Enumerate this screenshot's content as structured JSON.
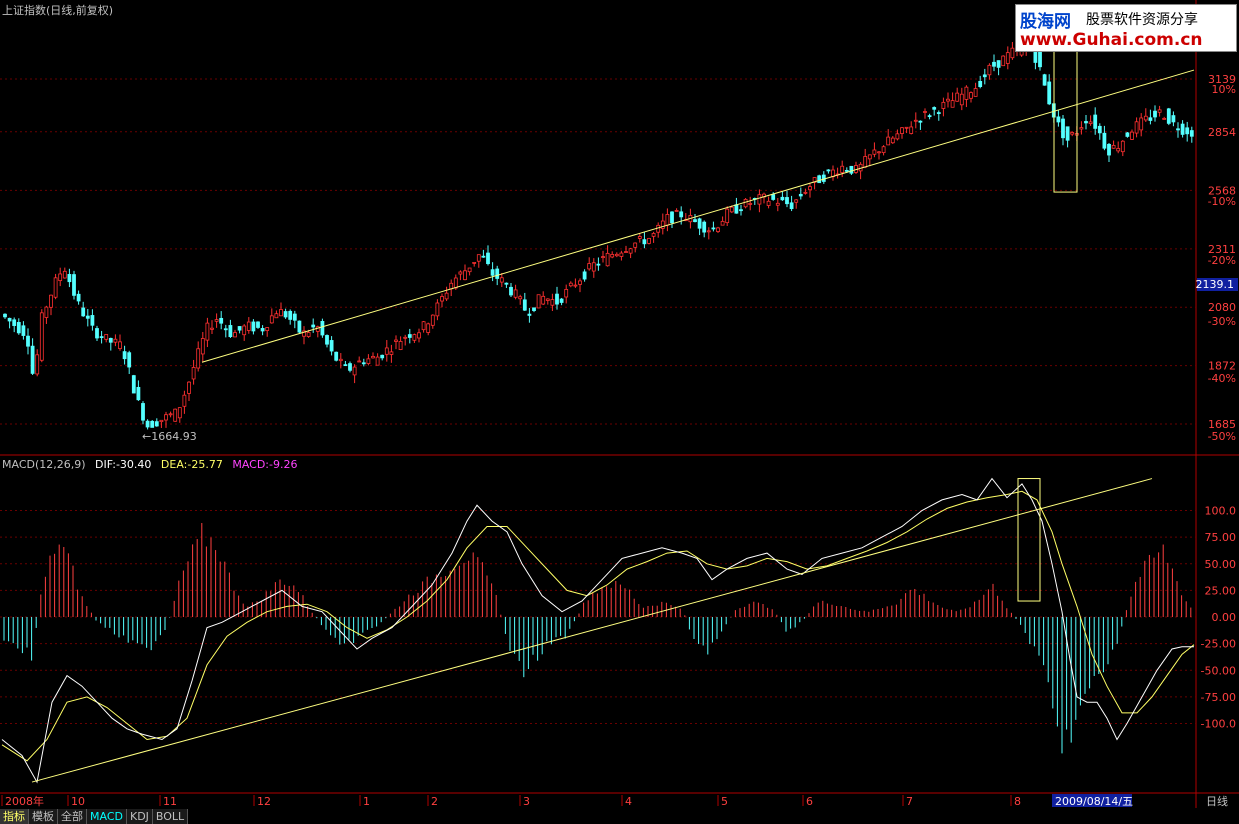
{
  "chart_data": [
    {
      "type": "candlestick",
      "title": "上证指数(日线,前复权)",
      "price_ticks": [
        3139,
        2854,
        2568,
        2311,
        2080,
        1872,
        1685
      ],
      "pct_ticks": [
        "10%",
        "-10%",
        "-20%",
        "-30%",
        "-40%",
        "-50%"
      ],
      "current_price": "2139.1",
      "low_annotation": "1664.93",
      "x_labels": [
        "2008年",
        "10",
        "11",
        "12",
        "1",
        "2",
        "3",
        "4",
        "5",
        "6",
        "7",
        "8"
      ],
      "date_label": "2009/08/14/五",
      "period_label": "日线",
      "close_path": [
        [
          0,
          2050
        ],
        [
          25,
          1980
        ],
        [
          32,
          1815
        ],
        [
          40,
          2045
        ],
        [
          55,
          2190
        ],
        [
          62,
          2240
        ],
        [
          75,
          2100
        ],
        [
          90,
          2000
        ],
        [
          105,
          1960
        ],
        [
          120,
          1940
        ],
        [
          135,
          1760
        ],
        [
          145,
          1680
        ],
        [
          160,
          1700
        ],
        [
          175,
          1720
        ],
        [
          185,
          1800
        ],
        [
          195,
          1900
        ],
        [
          205,
          2000
        ],
        [
          215,
          2040
        ],
        [
          230,
          1980
        ],
        [
          245,
          2010
        ],
        [
          260,
          2000
        ],
        [
          275,
          2070
        ],
        [
          285,
          2050
        ],
        [
          300,
          1980
        ],
        [
          315,
          2010
        ],
        [
          330,
          1910
        ],
        [
          345,
          1855
        ],
        [
          360,
          1890
        ],
        [
          375,
          1900
        ],
        [
          390,
          1940
        ],
        [
          405,
          1980
        ],
        [
          420,
          2000
        ],
        [
          435,
          2080
        ],
        [
          450,
          2180
        ],
        [
          465,
          2230
        ],
        [
          478,
          2290
        ],
        [
          490,
          2210
        ],
        [
          500,
          2180
        ],
        [
          515,
          2120
        ],
        [
          525,
          2060
        ],
        [
          540,
          2120
        ],
        [
          555,
          2100
        ],
        [
          570,
          2160
        ],
        [
          590,
          2240
        ],
        [
          610,
          2290
        ],
        [
          630,
          2330
        ],
        [
          650,
          2360
        ],
        [
          665,
          2440
        ],
        [
          680,
          2460
        ],
        [
          695,
          2420
        ],
        [
          710,
          2390
        ],
        [
          725,
          2460
        ],
        [
          740,
          2500
        ],
        [
          760,
          2530
        ],
        [
          775,
          2520
        ],
        [
          790,
          2500
        ],
        [
          805,
          2580
        ],
        [
          820,
          2630
        ],
        [
          840,
          2680
        ],
        [
          855,
          2660
        ],
        [
          870,
          2740
        ],
        [
          885,
          2800
        ],
        [
          900,
          2850
        ],
        [
          915,
          2920
        ],
        [
          930,
          2960
        ],
        [
          945,
          3000
        ],
        [
          960,
          3050
        ],
        [
          975,
          3100
        ],
        [
          988,
          3200
        ],
        [
          1000,
          3250
        ],
        [
          1012,
          3300
        ],
        [
          1025,
          3350
        ],
        [
          1035,
          3250
        ],
        [
          1045,
          3050
        ],
        [
          1055,
          2900
        ],
        [
          1065,
          2810
        ],
        [
          1075,
          2860
        ],
        [
          1085,
          2930
        ],
        [
          1095,
          2880
        ],
        [
          1105,
          2760
        ],
        [
          1115,
          2780
        ],
        [
          1130,
          2870
        ],
        [
          1145,
          2920
        ],
        [
          1160,
          2960
        ],
        [
          1170,
          2900
        ],
        [
          1180,
          2870
        ],
        [
          1192,
          2850
        ]
      ],
      "trendline": {
        "from": [
          0,
          1620
        ],
        "to": [
          1192,
          3190
        ]
      },
      "highlight_box": {
        "from": [
          1052,
          3380
        ],
        "to": [
          1075,
          2560
        ]
      }
    },
    {
      "type": "macd",
      "title": "MACD(12,26,9)",
      "dif_label": "DIF:-30.40",
      "dea_label": "DEA:-25.77",
      "macd_label": "MACD:-9.26",
      "y_ticks": [
        "100.0",
        "75.00",
        "50.00",
        "25.00",
        "0.00",
        "-25.00",
        "-50.00",
        "-75.00",
        "-100.0"
      ],
      "ylim": [
        -160,
        130
      ],
      "dif_path": [
        [
          0,
          -115
        ],
        [
          20,
          -130
        ],
        [
          35,
          -155
        ],
        [
          50,
          -80
        ],
        [
          65,
          -55
        ],
        [
          80,
          -65
        ],
        [
          95,
          -80
        ],
        [
          110,
          -95
        ],
        [
          125,
          -105
        ],
        [
          140,
          -110
        ],
        [
          160,
          -115
        ],
        [
          175,
          -105
        ],
        [
          190,
          -60
        ],
        [
          205,
          -10
        ],
        [
          220,
          -5
        ],
        [
          240,
          5
        ],
        [
          260,
          15
        ],
        [
          280,
          25
        ],
        [
          300,
          10
        ],
        [
          320,
          5
        ],
        [
          340,
          -15
        ],
        [
          355,
          -30
        ],
        [
          370,
          -20
        ],
        [
          390,
          -10
        ],
        [
          410,
          10
        ],
        [
          430,
          30
        ],
        [
          450,
          60
        ],
        [
          465,
          90
        ],
        [
          475,
          105
        ],
        [
          490,
          90
        ],
        [
          505,
          80
        ],
        [
          520,
          50
        ],
        [
          540,
          20
        ],
        [
          560,
          5
        ],
        [
          580,
          15
        ],
        [
          600,
          35
        ],
        [
          620,
          55
        ],
        [
          640,
          60
        ],
        [
          660,
          65
        ],
        [
          680,
          60
        ],
        [
          695,
          55
        ],
        [
          710,
          35
        ],
        [
          725,
          45
        ],
        [
          745,
          55
        ],
        [
          765,
          60
        ],
        [
          785,
          45
        ],
        [
          800,
          40
        ],
        [
          820,
          55
        ],
        [
          840,
          60
        ],
        [
          860,
          65
        ],
        [
          880,
          75
        ],
        [
          900,
          85
        ],
        [
          920,
          100
        ],
        [
          940,
          110
        ],
        [
          960,
          115
        ],
        [
          975,
          110
        ],
        [
          990,
          130
        ],
        [
          1005,
          112
        ],
        [
          1020,
          125
        ],
        [
          1030,
          110
        ],
        [
          1040,
          90
        ],
        [
          1050,
          50
        ],
        [
          1060,
          5
        ],
        [
          1068,
          -40
        ],
        [
          1075,
          -75
        ],
        [
          1085,
          -80
        ],
        [
          1095,
          -80
        ],
        [
          1105,
          -95
        ],
        [
          1115,
          -115
        ],
        [
          1125,
          -100
        ],
        [
          1140,
          -75
        ],
        [
          1155,
          -50
        ],
        [
          1170,
          -30
        ],
        [
          1180,
          -28
        ],
        [
          1192,
          -28
        ]
      ],
      "dea_path": [
        [
          0,
          -120
        ],
        [
          25,
          -135
        ],
        [
          45,
          -115
        ],
        [
          65,
          -80
        ],
        [
          85,
          -75
        ],
        [
          105,
          -85
        ],
        [
          125,
          -100
        ],
        [
          145,
          -115
        ],
        [
          165,
          -112
        ],
        [
          185,
          -95
        ],
        [
          205,
          -45
        ],
        [
          225,
          -18
        ],
        [
          245,
          -5
        ],
        [
          265,
          5
        ],
        [
          285,
          10
        ],
        [
          305,
          12
        ],
        [
          325,
          5
        ],
        [
          345,
          -10
        ],
        [
          365,
          -20
        ],
        [
          385,
          -12
        ],
        [
          405,
          0
        ],
        [
          425,
          15
        ],
        [
          445,
          35
        ],
        [
          465,
          65
        ],
        [
          485,
          85
        ],
        [
          505,
          85
        ],
        [
          525,
          65
        ],
        [
          545,
          45
        ],
        [
          565,
          25
        ],
        [
          585,
          20
        ],
        [
          605,
          30
        ],
        [
          625,
          45
        ],
        [
          645,
          52
        ],
        [
          665,
          60
        ],
        [
          685,
          62
        ],
        [
          705,
          50
        ],
        [
          725,
          45
        ],
        [
          745,
          48
        ],
        [
          765,
          55
        ],
        [
          785,
          52
        ],
        [
          805,
          45
        ],
        [
          825,
          48
        ],
        [
          845,
          55
        ],
        [
          865,
          62
        ],
        [
          885,
          70
        ],
        [
          905,
          80
        ],
        [
          925,
          92
        ],
        [
          945,
          102
        ],
        [
          965,
          108
        ],
        [
          985,
          112
        ],
        [
          1005,
          115
        ],
        [
          1020,
          118
        ],
        [
          1035,
          110
        ],
        [
          1050,
          80
        ],
        [
          1060,
          50
        ],
        [
          1075,
          10
        ],
        [
          1090,
          -35
        ],
        [
          1105,
          -65
        ],
        [
          1120,
          -90
        ],
        [
          1135,
          -90
        ],
        [
          1150,
          -75
        ],
        [
          1165,
          -55
        ],
        [
          1180,
          -35
        ],
        [
          1192,
          -26
        ]
      ],
      "hist_path": [
        [
          0,
          -20
        ],
        [
          15,
          -30
        ],
        [
          30,
          -42
        ],
        [
          40,
          30
        ],
        [
          55,
          80
        ],
        [
          65,
          65
        ],
        [
          80,
          20
        ],
        [
          95,
          -5
        ],
        [
          110,
          -15
        ],
        [
          125,
          -25
        ],
        [
          145,
          -35
        ],
        [
          165,
          -10
        ],
        [
          180,
          45
        ],
        [
          200,
          85
        ],
        [
          215,
          75
        ],
        [
          230,
          35
        ],
        [
          245,
          10
        ],
        [
          260,
          20
        ],
        [
          280,
          40
        ],
        [
          295,
          30
        ],
        [
          310,
          5
        ],
        [
          325,
          -15
        ],
        [
          340,
          -35
        ],
        [
          355,
          -20
        ],
        [
          375,
          -10
        ],
        [
          390,
          5
        ],
        [
          410,
          25
        ],
        [
          430,
          40
        ],
        [
          450,
          55
        ],
        [
          465,
          65
        ],
        [
          480,
          50
        ],
        [
          495,
          20
        ],
        [
          505,
          -25
        ],
        [
          520,
          -60
        ],
        [
          535,
          -40
        ],
        [
          550,
          -25
        ],
        [
          565,
          -20
        ],
        [
          585,
          20
        ],
        [
          605,
          35
        ],
        [
          625,
          30
        ],
        [
          640,
          10
        ],
        [
          660,
          15
        ],
        [
          680,
          10
        ],
        [
          690,
          -20
        ],
        [
          705,
          -35
        ],
        [
          720,
          -15
        ],
        [
          735,
          10
        ],
        [
          750,
          15
        ],
        [
          770,
          10
        ],
        [
          785,
          -15
        ],
        [
          800,
          -5
        ],
        [
          815,
          15
        ],
        [
          830,
          15
        ],
        [
          845,
          10
        ],
        [
          865,
          5
        ],
        [
          880,
          10
        ],
        [
          895,
          15
        ],
        [
          910,
          30
        ],
        [
          925,
          20
        ],
        [
          940,
          10
        ],
        [
          955,
          5
        ],
        [
          975,
          15
        ],
        [
          990,
          35
        ],
        [
          1005,
          10
        ],
        [
          1020,
          -10
        ],
        [
          1035,
          -40
        ],
        [
          1050,
          -80
        ],
        [
          1062,
          -140
        ],
        [
          1070,
          -110
        ],
        [
          1085,
          -80
        ],
        [
          1100,
          -60
        ],
        [
          1115,
          -30
        ],
        [
          1125,
          10
        ],
        [
          1135,
          40
        ],
        [
          1150,
          60
        ],
        [
          1162,
          70
        ],
        [
          1172,
          45
        ],
        [
          1182,
          20
        ],
        [
          1192,
          5
        ]
      ],
      "trendline": {
        "from": [
          30,
          -155
        ],
        "to": [
          1150,
          130
        ]
      },
      "highlight_box": {
        "from": [
          1016,
          130
        ],
        "to": [
          1038,
          15
        ]
      }
    }
  ],
  "tabs": [
    "指标",
    "模板",
    "全部",
    "MACD",
    "KDJ",
    "BOLL"
  ],
  "logo": {
    "line1": "股海网",
    "line1b": "股票软件资源分享",
    "line2": "www.Guhai.com.cn"
  }
}
